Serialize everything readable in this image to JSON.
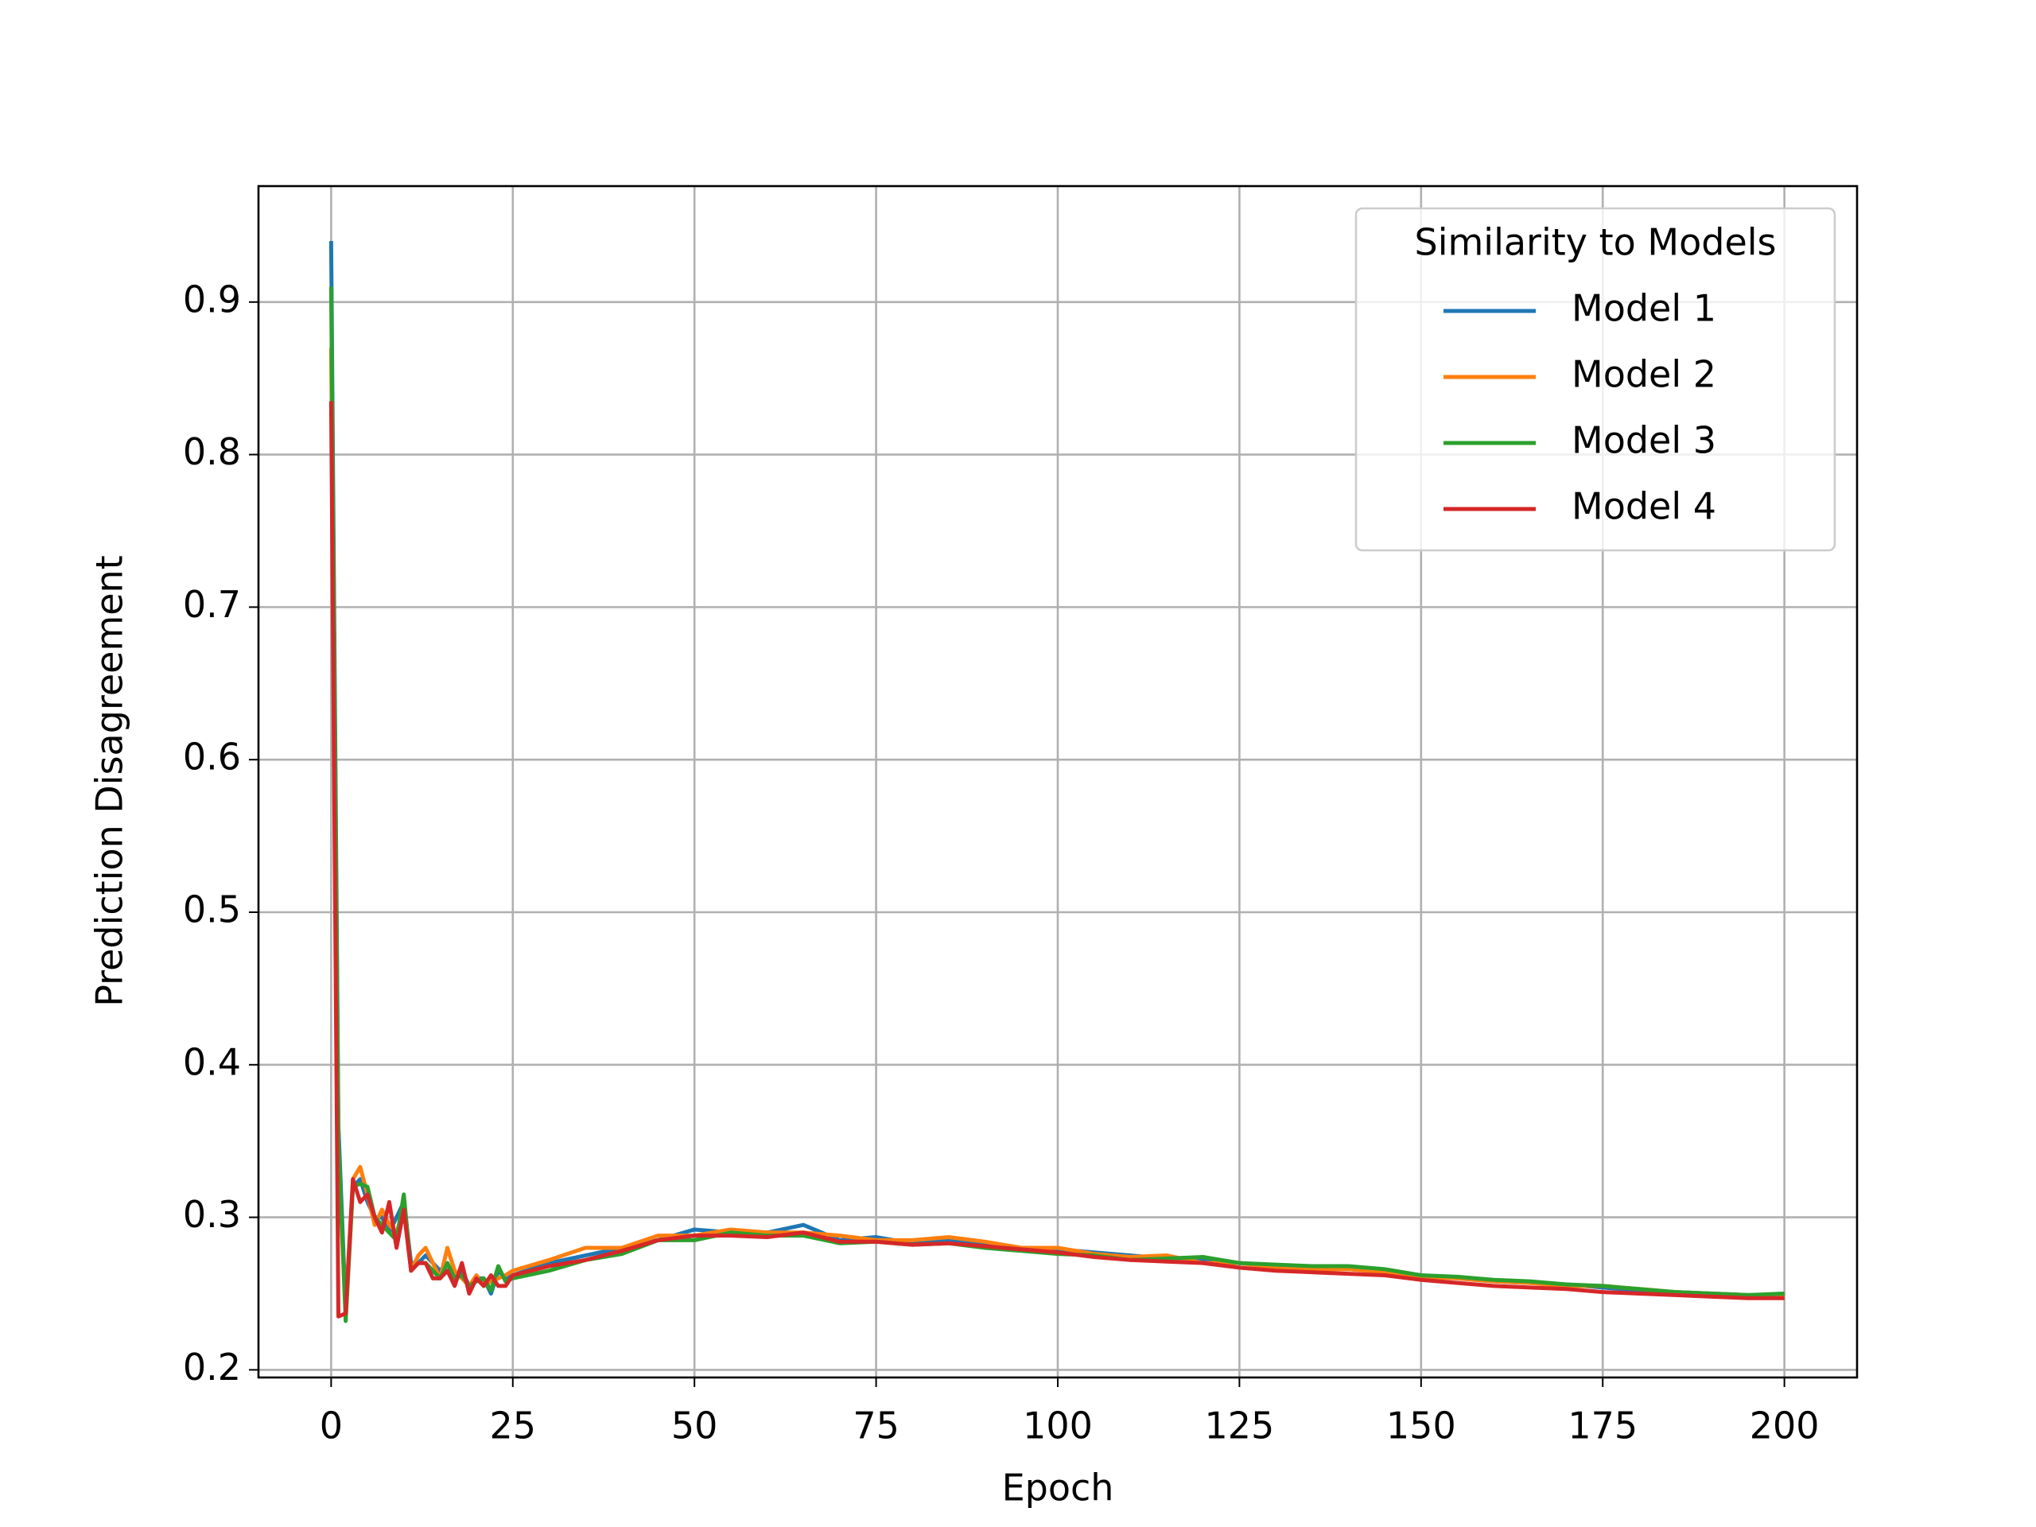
{
  "chart_data": {
    "type": "line",
    "xlabel": "Epoch",
    "ylabel": "Prediction Disagreement",
    "legend_title": "Similarity to Models",
    "legend": "upper right",
    "grid": true,
    "x": [
      0,
      1,
      2,
      3,
      4,
      5,
      6,
      7,
      8,
      9,
      10,
      11,
      12,
      13,
      14,
      15,
      16,
      17,
      18,
      19,
      20,
      21,
      22,
      23,
      24,
      25,
      30,
      35,
      40,
      45,
      50,
      55,
      60,
      65,
      70,
      75,
      80,
      85,
      90,
      95,
      100,
      105,
      110,
      115,
      120,
      125,
      130,
      135,
      140,
      145,
      150,
      155,
      160,
      165,
      170,
      175,
      180,
      185,
      190,
      195,
      200
    ],
    "xlim": [
      -10,
      210
    ],
    "xticks": [
      0,
      25,
      50,
      75,
      100,
      125,
      150,
      175,
      200
    ],
    "ylim": [
      0.195,
      0.976
    ],
    "yticks": [
      0.2,
      0.3,
      0.4,
      0.5,
      0.6,
      0.7,
      0.8,
      0.9
    ],
    "series": [
      {
        "name": "Model 1",
        "color": "#1f77b4",
        "values": [
          0.94,
          0.36,
          0.24,
          0.32,
          0.325,
          0.31,
          0.3,
          0.3,
          0.29,
          0.3,
          0.31,
          0.27,
          0.27,
          0.275,
          0.27,
          0.265,
          0.27,
          0.26,
          0.265,
          0.255,
          0.26,
          0.26,
          0.25,
          0.265,
          0.26,
          0.262,
          0.27,
          0.275,
          0.28,
          0.285,
          0.292,
          0.29,
          0.29,
          0.295,
          0.285,
          0.287,
          0.283,
          0.285,
          0.283,
          0.28,
          0.279,
          0.277,
          0.275,
          0.273,
          0.272,
          0.27,
          0.268,
          0.267,
          0.266,
          0.265,
          0.262,
          0.26,
          0.258,
          0.257,
          0.256,
          0.254,
          0.252,
          0.251,
          0.25,
          0.249,
          0.249
        ]
      },
      {
        "name": "Model 2",
        "color": "#ff7f0e",
        "values": [
          0.87,
          0.34,
          0.24,
          0.325,
          0.333,
          0.315,
          0.295,
          0.305,
          0.295,
          0.29,
          0.305,
          0.265,
          0.275,
          0.28,
          0.27,
          0.26,
          0.28,
          0.265,
          0.26,
          0.255,
          0.262,
          0.255,
          0.258,
          0.26,
          0.262,
          0.265,
          0.272,
          0.28,
          0.28,
          0.288,
          0.288,
          0.292,
          0.29,
          0.29,
          0.288,
          0.285,
          0.285,
          0.287,
          0.284,
          0.28,
          0.28,
          0.276,
          0.274,
          0.275,
          0.27,
          0.27,
          0.267,
          0.266,
          0.266,
          0.264,
          0.261,
          0.26,
          0.258,
          0.257,
          0.255,
          0.255,
          0.253,
          0.251,
          0.25,
          0.249,
          0.248
        ]
      },
      {
        "name": "Model 3",
        "color": "#2ca02c",
        "values": [
          0.91,
          0.35,
          0.232,
          0.32,
          0.322,
          0.32,
          0.3,
          0.295,
          0.29,
          0.285,
          0.315,
          0.265,
          0.27,
          0.27,
          0.265,
          0.26,
          0.27,
          0.26,
          0.262,
          0.255,
          0.258,
          0.26,
          0.252,
          0.268,
          0.258,
          0.26,
          0.265,
          0.272,
          0.276,
          0.285,
          0.285,
          0.29,
          0.288,
          0.288,
          0.283,
          0.284,
          0.282,
          0.283,
          0.28,
          0.278,
          0.276,
          0.275,
          0.272,
          0.273,
          0.274,
          0.27,
          0.269,
          0.268,
          0.268,
          0.266,
          0.262,
          0.261,
          0.259,
          0.258,
          0.256,
          0.255,
          0.253,
          0.251,
          0.25,
          0.249,
          0.25
        ]
      },
      {
        "name": "Model 4",
        "color": "#d62728",
        "values": [
          0.835,
          0.235,
          0.237,
          0.325,
          0.31,
          0.315,
          0.3,
          0.29,
          0.31,
          0.28,
          0.305,
          0.265,
          0.27,
          0.27,
          0.26,
          0.26,
          0.265,
          0.255,
          0.27,
          0.25,
          0.26,
          0.255,
          0.262,
          0.255,
          0.255,
          0.262,
          0.268,
          0.272,
          0.278,
          0.285,
          0.288,
          0.288,
          0.287,
          0.29,
          0.284,
          0.284,
          0.282,
          0.283,
          0.281,
          0.279,
          0.277,
          0.274,
          0.272,
          0.271,
          0.27,
          0.267,
          0.265,
          0.264,
          0.263,
          0.262,
          0.259,
          0.257,
          0.255,
          0.254,
          0.253,
          0.251,
          0.25,
          0.249,
          0.248,
          0.247,
          0.247
        ]
      }
    ]
  }
}
